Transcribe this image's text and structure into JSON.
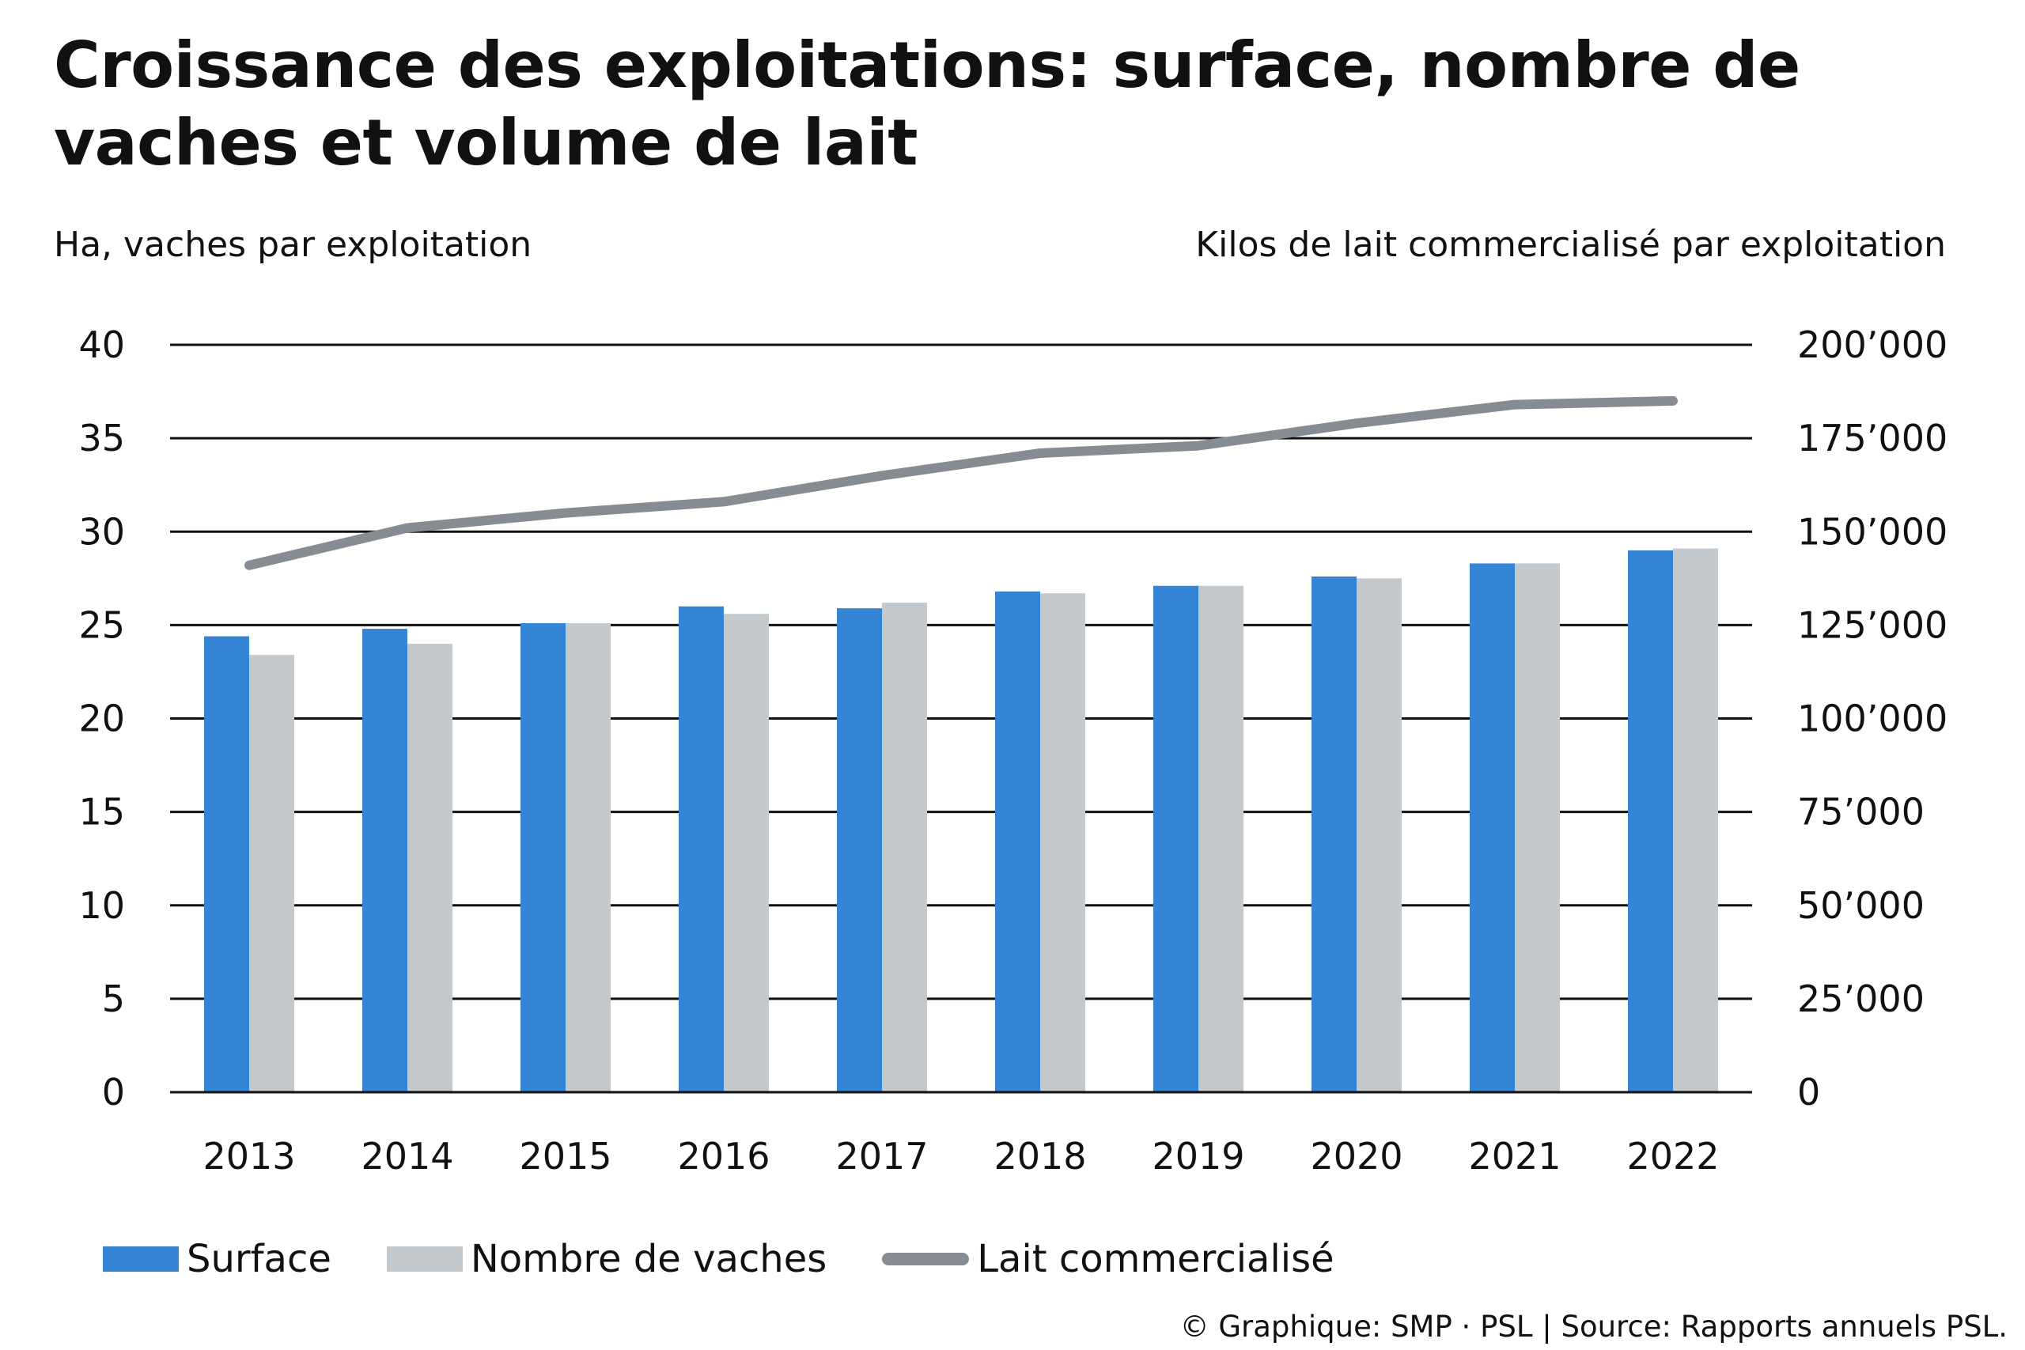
{
  "title": "Croissance des exploitations: surface, nombre de vaches et volume de lait",
  "credit": "© Graphique: SMP · PSL | Source: Rapports annuels PSL.",
  "colors": {
    "surface": "#3585D6",
    "vaches": "#C3C9CD",
    "lait": "#868C91",
    "grid": "#111111"
  },
  "chart_data": {
    "type": "bar",
    "categories": [
      "2013",
      "2014",
      "2015",
      "2016",
      "2017",
      "2018",
      "2019",
      "2020",
      "2021",
      "2022"
    ],
    "ylabel_left": "Ha, vaches par exploitation",
    "ylabel_right": "Kilos de lait commercialisé par exploitation",
    "ylim_left": [
      0,
      40
    ],
    "ylim_right": [
      0,
      200000
    ],
    "yticks_left": [
      "0",
      "5",
      "10",
      "15",
      "20",
      "25",
      "30",
      "35",
      "40"
    ],
    "yticks_right": [
      "0",
      "25’000",
      "50’000",
      "75’000",
      "100’000",
      "125’000",
      "150’000",
      "175’000",
      "200’000"
    ],
    "grid": true,
    "legend_position": "bottom-left",
    "series": [
      {
        "name": "Surface",
        "type": "bar",
        "axis": "left",
        "color": "#3585D6",
        "values": [
          24.4,
          24.8,
          25.1,
          26.0,
          25.9,
          26.8,
          27.1,
          27.6,
          28.3,
          29.0
        ]
      },
      {
        "name": "Nombre de vaches",
        "type": "bar",
        "axis": "left",
        "color": "#C3C9CD",
        "values": [
          23.4,
          24.0,
          25.1,
          25.6,
          26.2,
          26.7,
          27.1,
          27.5,
          28.3,
          29.1
        ]
      },
      {
        "name": "Lait commercialisé",
        "type": "line",
        "axis": "right",
        "color": "#868C91",
        "values": [
          141000,
          151000,
          155000,
          158000,
          165000,
          171000,
          173000,
          179000,
          184000,
          185000
        ]
      }
    ]
  }
}
